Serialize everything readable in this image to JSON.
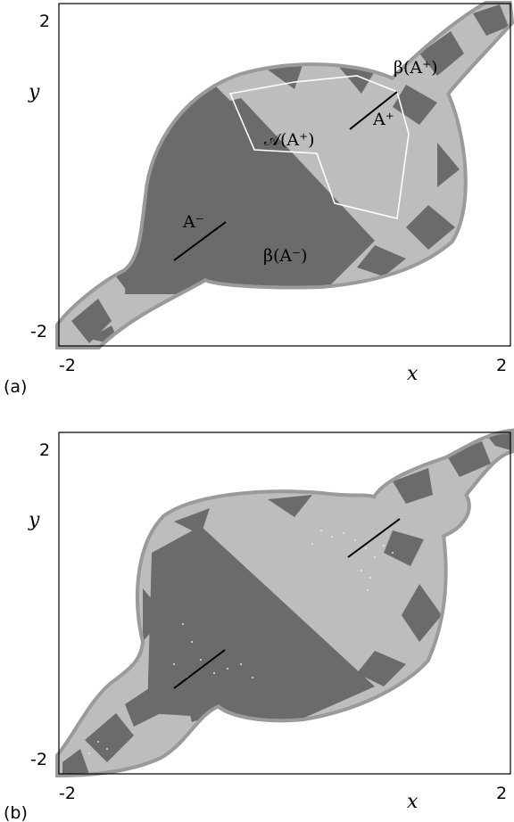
{
  "colors": {
    "dark_basin": "#6b6b6b",
    "light_basin": "#bdbdbd",
    "boundary": "#9a9a9a",
    "attractor_line": "#000000",
    "attractor_region_outline": "#ffffff",
    "background": "#ffffff"
  },
  "panels": [
    {
      "tag": "(a)",
      "xlabel": "x",
      "ylabel": "y",
      "x_tick_min": "-2",
      "x_tick_max": "2",
      "y_tick_min": "-2",
      "y_tick_max": "2",
      "labels": {
        "a_plus": "A⁺",
        "a_minus": "A⁻",
        "beta_a_plus": "β(A⁺)",
        "beta_a_minus": "β(A⁻)",
        "script_a_plus": "𝒜(A⁺)"
      }
    },
    {
      "tag": "(b)",
      "xlabel": "x",
      "ylabel": "y",
      "x_tick_min": "-2",
      "x_tick_max": "2",
      "y_tick_min": "-2",
      "y_tick_max": "2"
    }
  ]
}
